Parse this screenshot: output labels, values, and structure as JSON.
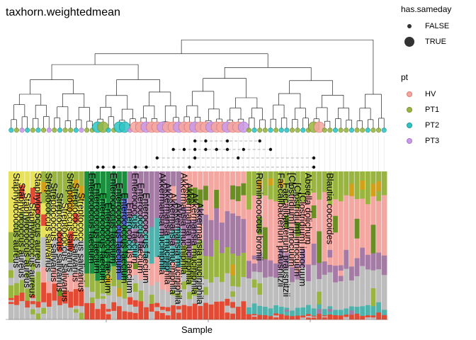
{
  "chart_data": {
    "type": "heatmap",
    "title": "taxhorn.weightedmean",
    "xlabel": "Sample",
    "ylabel": "",
    "n_samples": 70,
    "legend_has_sameday": {
      "title": "has.sameday",
      "entries": [
        {
          "label": "FALSE",
          "size": "small",
          "color": "#333333"
        },
        {
          "label": "TRUE",
          "size": "large",
          "color": "#333333"
        }
      ]
    },
    "legend_pt": {
      "title": "pt",
      "entries": [
        {
          "label": "HV",
          "color": "#f4a6a0"
        },
        {
          "label": "PT1",
          "color": "#99b540"
        },
        {
          "label": "PT2",
          "color": "#2ec4c4"
        },
        {
          "label": "PT3",
          "color": "#c99ae8"
        }
      ]
    },
    "taxa_labels": [
      "Staphylococcus aureus",
      "Streptococcus salivarius",
      "Enterococcus faecium",
      "Akkermansia muciniphila",
      "Ruminococcus bromii",
      "Faecalibacterium prausnitzii",
      "[Clostridium] innocuum",
      "Absiella dolichum",
      "Blautia coccoides"
    ],
    "segment_palette": [
      "#f4a6a0",
      "#99b540",
      "#a57aa5",
      "#bdbdbd",
      "#4fb3ad",
      "#e34a33",
      "#4a63c4",
      "#e8e25a",
      "#1a8f3e",
      "#6b8e23",
      "#d4a017"
    ]
  }
}
